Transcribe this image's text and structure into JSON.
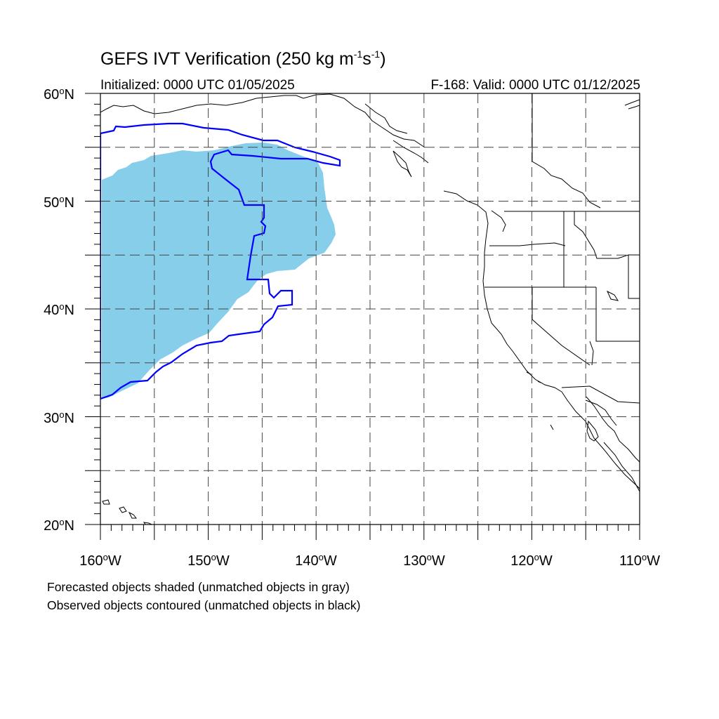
{
  "header": {
    "title_main": "GEFS IVT Verification (250 kg m",
    "title_exp1": "-1",
    "title_mid": "s",
    "title_exp2": "-1",
    "title_end": ")",
    "initialized": "Initialized: 0000 UTC 01/05/2025",
    "valid": "F-168: Valid: 0000 UTC 01/12/2025"
  },
  "map": {
    "projection": "cylindrical equidistant",
    "lon_range": [
      -160,
      -110
    ],
    "lat_range": [
      20,
      60
    ],
    "grid": "dashed, every 5 degrees",
    "lat_labels": [
      {
        "value": "60",
        "suffix": "N"
      },
      {
        "value": "50",
        "suffix": "N"
      },
      {
        "value": "40",
        "suffix": "N"
      },
      {
        "value": "30",
        "suffix": "N"
      },
      {
        "value": "20",
        "suffix": "N"
      }
    ],
    "lon_labels": [
      {
        "value": "160",
        "suffix": "W"
      },
      {
        "value": "150",
        "suffix": "W"
      },
      {
        "value": "140",
        "suffix": "W"
      },
      {
        "value": "130",
        "suffix": "W"
      },
      {
        "value": "120",
        "suffix": "W"
      },
      {
        "value": "110",
        "suffix": "W"
      }
    ],
    "forecast_fill_color": "#87ceeb",
    "observed_contour_color": "#0000ff",
    "coastline_color": "#000000"
  },
  "notes": {
    "line1": "Forecasted objects shaded (unmatched objects in gray)",
    "line2": "Observed objects contoured (unmatched objects in black)"
  }
}
